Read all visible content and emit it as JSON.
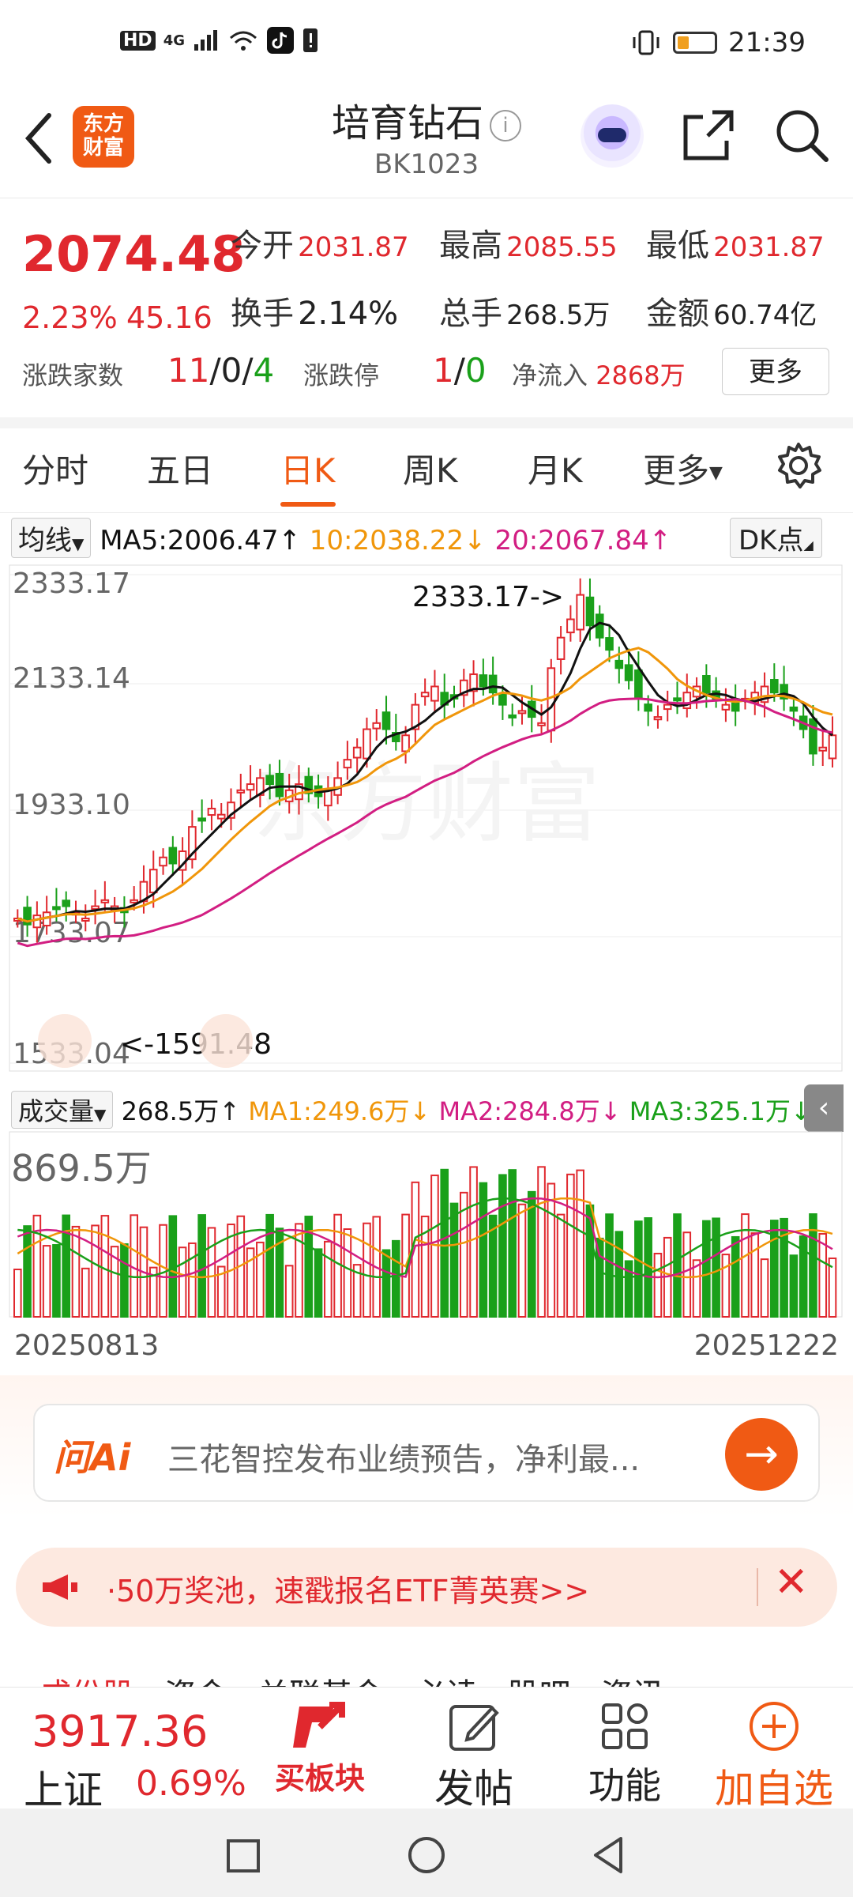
{
  "status_bar": {
    "net_left": [
      "HD",
      "4G"
    ],
    "time": "21:39",
    "icons": [
      "signal-icon",
      "wifi-icon",
      "tiktok-icon",
      "alert-icon",
      "vibrate-icon",
      "battery-icon"
    ]
  },
  "header": {
    "logo_text": "东方\n财富",
    "title": "培育钻石",
    "code": "BK1023"
  },
  "quote": {
    "price": "2074.48",
    "change_pct": "2.23%",
    "change": "45.16",
    "open_label": "今开",
    "open": "2031.87",
    "high_label": "最高",
    "high": "2085.55",
    "low_label": "最低",
    "low": "2031.87",
    "turnover_label": "换手",
    "turnover": "2.14%",
    "volume_label": "总手",
    "volume": "268.5万",
    "amount_label": "金额",
    "amount": "60.74亿",
    "breadth_label": "涨跌家数",
    "breadth_up": "11",
    "breadth_flat": "0",
    "breadth_down": "4",
    "limit_label": "涨跌停",
    "limit_up": "1",
    "limit_down": "0",
    "inflow_label": "净流入",
    "inflow": "2868万",
    "more": "更多"
  },
  "tabs": [
    "分时",
    "五日",
    "日K",
    "周K",
    "月K",
    "更多"
  ],
  "active_tab": 2,
  "ma_row": {
    "selector": "均线",
    "ma5": "MA5:2006.47",
    "ma10": "10:2038.22",
    "ma20": "20:2067.84",
    "dk": "DK点"
  },
  "chart": {
    "y_labels": [
      "2333.17",
      "2133.14",
      "1933.10",
      "1733.07",
      "1533.04"
    ],
    "high_note": "2333.17->",
    "low_note": "<-1591.48",
    "watermark": "东方财富"
  },
  "volume_row": {
    "selector": "成交量",
    "vol": "268.5万",
    "ma1": "MA1:249.6万",
    "ma2": "MA2:284.8万",
    "ma3": "MA3:325.1万",
    "max_label": "869.5万"
  },
  "dates": {
    "start": "20250813",
    "end": "20251222"
  },
  "ai": {
    "logo": "问Ai",
    "text": "三花智控发布业绩预告，净利最..."
  },
  "notice": {
    "text": "·50万奖池，速戳报名ETF菁英赛>>"
  },
  "bottom_tabs_peek": [
    "成份股",
    "资金",
    "关联基金",
    "必读",
    "股吧",
    "资讯"
  ],
  "toolbar": {
    "index_value": "3917.36",
    "index_name": "上证",
    "index_pct": "0.69%",
    "buy_sector": "买板块",
    "post": "发帖",
    "features": "功能",
    "add_watch": "加自选"
  },
  "colors": {
    "up": "#e0282e",
    "down": "#1aa01a",
    "accent": "#f05a14",
    "ma5": "#111111",
    "ma10": "#f0960a",
    "ma20": "#d21e82"
  }
}
